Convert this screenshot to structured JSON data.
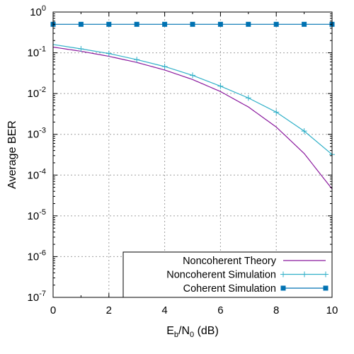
{
  "chart_data": {
    "type": "line",
    "xlabel": {
      "main": "E",
      "sub1": "b",
      "mid": "/N",
      "sub2": "0",
      "tail": " (dB)"
    },
    "ylabel": "Average BER",
    "xlim": [
      0,
      10
    ],
    "ylim_log10": [
      -7,
      0
    ],
    "yscale": "log",
    "grid": true,
    "legend_position": "bottom-right",
    "x_ticks": [
      "0",
      "2",
      "4",
      "6",
      "8",
      "10"
    ],
    "y_ticks": [
      {
        "base": "10",
        "exp": "0"
      },
      {
        "base": "10",
        "exp": "-1"
      },
      {
        "base": "10",
        "exp": "-2"
      },
      {
        "base": "10",
        "exp": "-3"
      },
      {
        "base": "10",
        "exp": "-4"
      },
      {
        "base": "10",
        "exp": "-5"
      },
      {
        "base": "10",
        "exp": "-6"
      },
      {
        "base": "10",
        "exp": "-7"
      }
    ],
    "series": [
      {
        "name": "Noncoherent Theory",
        "color": "#8b1a9e",
        "marker": "none",
        "x": [
          0,
          1,
          2,
          3,
          4,
          5,
          6,
          7,
          8,
          9,
          10
        ],
        "y": [
          0.138,
          0.109,
          0.082,
          0.058,
          0.0378,
          0.0221,
          0.0112,
          0.00469,
          0.00151,
          0.000339,
          4.56e-05
        ]
      },
      {
        "name": "Noncoherent Simulation",
        "color": "#30b0c8",
        "marker": "plus",
        "x": [
          0,
          1,
          2,
          3,
          4,
          5,
          6,
          7,
          8,
          9,
          10
        ],
        "y": [
          0.16,
          0.125,
          0.096,
          0.068,
          0.046,
          0.028,
          0.0152,
          0.0078,
          0.0035,
          0.0012,
          0.00032
        ]
      },
      {
        "name": "Coherent Simulation",
        "color": "#0072b2",
        "marker": "square",
        "x": [
          0,
          1,
          2,
          3,
          4,
          5,
          6,
          7,
          8,
          9,
          10
        ],
        "y": [
          0.5,
          0.5,
          0.5,
          0.5,
          0.5,
          0.5,
          0.5,
          0.5,
          0.5,
          0.5,
          0.5
        ]
      }
    ]
  }
}
